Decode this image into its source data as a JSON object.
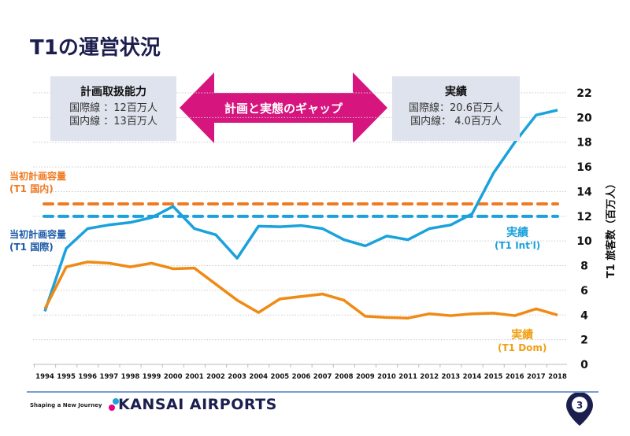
{
  "title": "T1の運営状況",
  "plan_box": {
    "heading": "計画取扱能力",
    "line1": "国際線 ：12百万人",
    "line2": "国内線 ：13百万人"
  },
  "gap_arrow": {
    "label": "計画と実態のギャップ",
    "color": "#d6157f"
  },
  "actual_box": {
    "heading": "実績",
    "line1": "国際線：20.6百万人",
    "line2": "国内線： 4.0百万人"
  },
  "labels": {
    "dom_plan": "当初計画容量",
    "dom_plan_sub": "(T1 国内)",
    "intl_plan": "当初計画容量",
    "intl_plan_sub": "(T1 国際)",
    "intl_actual": "実績",
    "intl_actual_sub": "(T1 Int'l)",
    "dom_actual": "実績",
    "dom_actual_sub": "(T1 Dom)"
  },
  "footer": {
    "tagline": "Shaping a New Journey",
    "brand": "KANSAI AIRPORTS",
    "page": "3"
  },
  "chart_data": {
    "type": "line",
    "ylabel": "T1 旅客数（百万人）",
    "ylim": [
      0,
      22
    ],
    "yticks": [
      0,
      2,
      4,
      6,
      8,
      10,
      12,
      14,
      16,
      18,
      20,
      22
    ],
    "y_axis_side": "right",
    "grid": true,
    "categories": [
      "1994",
      "1995",
      "1996",
      "1997",
      "1998",
      "1999",
      "2000",
      "2001",
      "2002",
      "2003",
      "2004",
      "2005",
      "2006",
      "2007",
      "2008",
      "2009",
      "2010",
      "2011",
      "2012",
      "2013",
      "2014",
      "2015",
      "2016",
      "2017",
      "2018"
    ],
    "series": [
      {
        "name": "実績 (T1 Int'l)",
        "color": "#1ba1dc",
        "values": [
          4.3,
          9.4,
          11.0,
          11.3,
          11.5,
          11.9,
          12.8,
          11.0,
          10.5,
          8.6,
          11.2,
          11.15,
          11.25,
          11.0,
          10.1,
          9.6,
          10.4,
          10.1,
          11.0,
          11.3,
          12.2,
          15.5,
          18.0,
          20.2,
          20.6
        ]
      },
      {
        "name": "実績 (T1 Dom)",
        "color": "#f08a14",
        "values": [
          4.5,
          7.9,
          8.3,
          8.2,
          7.9,
          8.2,
          7.75,
          7.8,
          6.5,
          5.2,
          4.2,
          5.3,
          5.5,
          5.7,
          5.2,
          3.9,
          3.8,
          3.75,
          4.1,
          3.95,
          4.1,
          4.15,
          3.95,
          4.5,
          4.0
        ]
      }
    ],
    "reference_lines": [
      {
        "name": "当初計画容量 (T1 国内)",
        "value": 13,
        "color": "#f07a22",
        "style": "dashed"
      },
      {
        "name": "当初計画容量 (T1 国際)",
        "value": 12,
        "color": "#1ba1dc",
        "style": "dashed"
      }
    ]
  }
}
